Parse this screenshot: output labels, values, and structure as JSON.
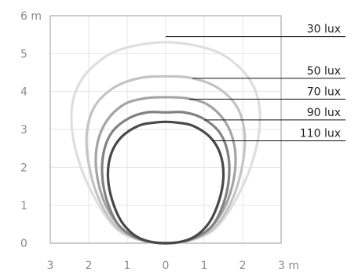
{
  "chart_data": {
    "type": "line",
    "title": "",
    "xlabel": "",
    "ylabel": "",
    "x_unit": "m",
    "y_unit": "m",
    "xlim": [
      -3,
      3
    ],
    "ylim": [
      0,
      6
    ],
    "x_ticks": [
      -3,
      -2,
      -1,
      0,
      1,
      2,
      3
    ],
    "x_tick_labels": [
      "3",
      "2",
      "1",
      "0",
      "1",
      "2",
      "3 m"
    ],
    "y_ticks": [
      0,
      1,
      2,
      3,
      4,
      5,
      6
    ],
    "y_tick_labels": [
      "0",
      "1",
      "2",
      "3",
      "4",
      "5",
      "6 m"
    ],
    "grid": true,
    "series": [
      {
        "name": "30 lux",
        "color": "#dedede",
        "label_y": 5.45,
        "points": [
          [
            0,
            0
          ],
          [
            -0.8,
            0.12
          ],
          [
            -1.4,
            0.5
          ],
          [
            -2.0,
            1.5
          ],
          [
            -2.35,
            2.5
          ],
          [
            -2.45,
            3.4
          ],
          [
            -2.3,
            4.1
          ],
          [
            -1.9,
            4.65
          ],
          [
            -1.2,
            5.1
          ],
          [
            0,
            5.3
          ],
          [
            1.2,
            5.1
          ],
          [
            1.9,
            4.65
          ],
          [
            2.3,
            4.1
          ],
          [
            2.45,
            3.4
          ],
          [
            2.35,
            2.5
          ],
          [
            2.0,
            1.5
          ],
          [
            1.4,
            0.5
          ],
          [
            0.8,
            0.12
          ],
          [
            0,
            0
          ]
        ]
      },
      {
        "name": "50 lux",
        "color": "#c4c4c4",
        "label_y": 4.35,
        "points": [
          [
            0,
            0
          ],
          [
            -0.75,
            0.12
          ],
          [
            -1.3,
            0.45
          ],
          [
            -1.75,
            1.2
          ],
          [
            -2.0,
            2.1
          ],
          [
            -2.05,
            2.9
          ],
          [
            -1.85,
            3.6
          ],
          [
            -1.35,
            4.1
          ],
          [
            -0.7,
            4.35
          ],
          [
            0,
            4.4
          ],
          [
            0.7,
            4.35
          ],
          [
            1.35,
            4.1
          ],
          [
            1.85,
            3.6
          ],
          [
            2.05,
            2.9
          ],
          [
            2.0,
            2.1
          ],
          [
            1.75,
            1.2
          ],
          [
            1.3,
            0.45
          ],
          [
            0.75,
            0.12
          ],
          [
            0,
            0
          ]
        ]
      },
      {
        "name": "70 lux",
        "color": "#a4a4a4",
        "label_y": 3.8,
        "points": [
          [
            0,
            0
          ],
          [
            -0.7,
            0.12
          ],
          [
            -1.2,
            0.45
          ],
          [
            -1.6,
            1.1
          ],
          [
            -1.8,
            1.9
          ],
          [
            -1.78,
            2.6
          ],
          [
            -1.55,
            3.2
          ],
          [
            -1.1,
            3.65
          ],
          [
            -0.55,
            3.82
          ],
          [
            0,
            3.85
          ],
          [
            0.55,
            3.82
          ],
          [
            1.1,
            3.65
          ],
          [
            1.55,
            3.2
          ],
          [
            1.78,
            2.6
          ],
          [
            1.8,
            1.9
          ],
          [
            1.6,
            1.1
          ],
          [
            1.2,
            0.45
          ],
          [
            0.7,
            0.12
          ],
          [
            0,
            0
          ]
        ]
      },
      {
        "name": "90 lux",
        "color": "#828282",
        "label_y": 3.25,
        "points": [
          [
            0,
            0
          ],
          [
            -0.7,
            0.12
          ],
          [
            -1.2,
            0.45
          ],
          [
            -1.52,
            1.1
          ],
          [
            -1.65,
            1.8
          ],
          [
            -1.6,
            2.45
          ],
          [
            -1.38,
            2.95
          ],
          [
            -0.95,
            3.3
          ],
          [
            -0.48,
            3.45
          ],
          [
            0,
            3.45
          ],
          [
            0.48,
            3.45
          ],
          [
            0.95,
            3.3
          ],
          [
            1.38,
            2.95
          ],
          [
            1.6,
            2.45
          ],
          [
            1.65,
            1.8
          ],
          [
            1.52,
            1.1
          ],
          [
            1.2,
            0.45
          ],
          [
            0.7,
            0.12
          ],
          [
            0,
            0
          ]
        ]
      },
      {
        "name": "110 lux",
        "color": "#484848",
        "label_y": 2.7,
        "points": [
          [
            0,
            0
          ],
          [
            -0.65,
            0.12
          ],
          [
            -1.1,
            0.5
          ],
          [
            -1.38,
            1.1
          ],
          [
            -1.5,
            1.75
          ],
          [
            -1.42,
            2.35
          ],
          [
            -1.15,
            2.8
          ],
          [
            -0.7,
            3.1
          ],
          [
            -0.3,
            3.18
          ],
          [
            0,
            3.2
          ],
          [
            0.3,
            3.18
          ],
          [
            0.7,
            3.1
          ],
          [
            1.15,
            2.8
          ],
          [
            1.42,
            2.35
          ],
          [
            1.5,
            1.75
          ],
          [
            1.38,
            1.1
          ],
          [
            1.1,
            0.5
          ],
          [
            0.65,
            0.12
          ],
          [
            0,
            0
          ]
        ]
      }
    ]
  }
}
